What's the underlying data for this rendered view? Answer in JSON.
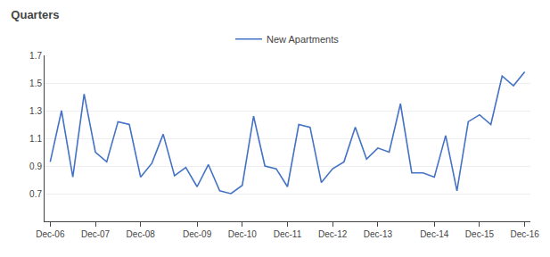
{
  "chart_data": {
    "type": "line",
    "title": "Quarters",
    "categories": [
      "Dec-06",
      null,
      null,
      null,
      "Dec-07",
      null,
      null,
      null,
      "Dec-08",
      null,
      null,
      null,
      null,
      "Dec-09",
      null,
      null,
      null,
      "Dec-10",
      null,
      null,
      null,
      "Dec-11",
      null,
      null,
      null,
      "Dec-12",
      null,
      null,
      null,
      "Dec-13",
      null,
      null,
      null,
      null,
      "Dec-14",
      null,
      null,
      null,
      "Dec-15",
      null,
      null,
      null,
      "Dec-16"
    ],
    "series": [
      {
        "name": "New Apartments",
        "color": "#4472C4",
        "values": [
          0.93,
          1.3,
          0.82,
          1.42,
          1.0,
          0.93,
          1.22,
          1.2,
          0.82,
          0.92,
          1.13,
          0.83,
          0.89,
          0.75,
          0.91,
          0.72,
          0.7,
          0.76,
          1.26,
          0.9,
          0.88,
          0.75,
          1.2,
          1.18,
          0.78,
          0.88,
          0.93,
          1.18,
          0.95,
          1.03,
          1.0,
          1.35,
          0.85,
          0.85,
          0.82,
          1.12,
          0.72,
          1.22,
          1.27,
          1.2,
          1.55,
          1.48,
          1.58
        ]
      }
    ],
    "ylim": [
      0.5,
      1.7
    ],
    "yticks": [
      0.7,
      0.9,
      1.1,
      1.3,
      1.5,
      1.7
    ],
    "grid": true,
    "legend": "top"
  }
}
